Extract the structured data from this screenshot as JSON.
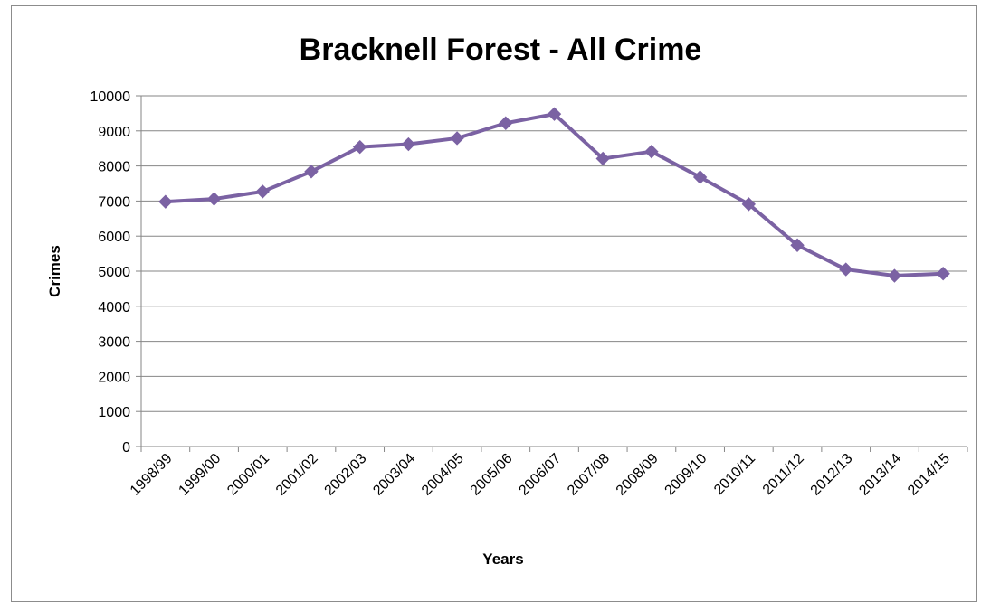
{
  "chart_data": {
    "type": "line",
    "title": "Bracknell Forest - All Crime",
    "xlabel": "Years",
    "ylabel": "Crimes",
    "categories": [
      "1998/99",
      "1999/00",
      "2000/01",
      "2001/02",
      "2002/03",
      "2003/04",
      "2004/05",
      "2005/06",
      "2006/07",
      "2007/08",
      "2008/09",
      "2009/10",
      "2010/11",
      "2011/12",
      "2012/13",
      "2013/14",
      "2014/15"
    ],
    "series": [
      {
        "values": [
          6980,
          7060,
          7270,
          7840,
          8540,
          8620,
          8790,
          9220,
          9480,
          8210,
          8410,
          7680,
          6910,
          5740,
          5050,
          4870,
          4930
        ],
        "color": "#7b62a3",
        "marker": "diamond"
      }
    ],
    "ylim": [
      0,
      10000
    ],
    "yticks": [
      0,
      1000,
      2000,
      3000,
      4000,
      5000,
      6000,
      7000,
      8000,
      9000,
      10000
    ],
    "grid": true,
    "legend": "none"
  }
}
